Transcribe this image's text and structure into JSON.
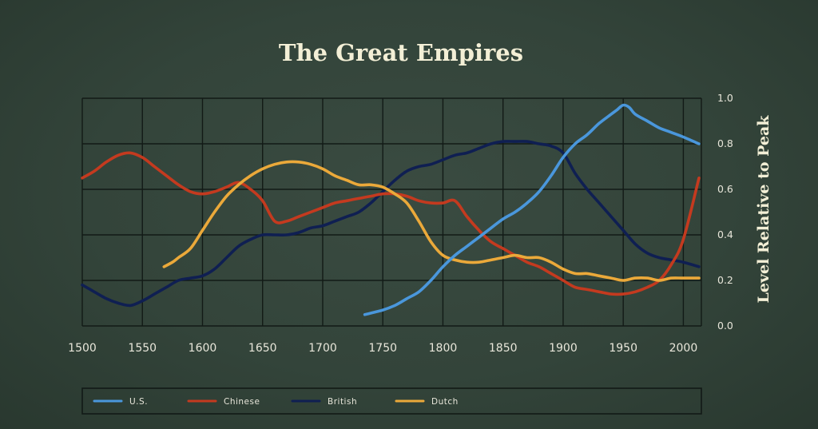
{
  "chart_data": {
    "type": "line",
    "title": "The Great Empires",
    "ylabel": "Level Relative to Peak",
    "xlabel": "",
    "xlim": [
      1500,
      2015
    ],
    "ylim": [
      0.0,
      1.0
    ],
    "xticks": [
      "1500",
      "1550",
      "1600",
      "1650",
      "1700",
      "1750",
      "1800",
      "1850",
      "1900",
      "1950",
      "2000"
    ],
    "yticks": [
      "0.0",
      "0.2",
      "0.4",
      "0.6",
      "0.8",
      "1.0"
    ],
    "grid": true,
    "legend_position": "bottom",
    "series": [
      {
        "name": "U.S.",
        "color": "#4a97dc",
        "x": [
          1735,
          1750,
          1760,
          1770,
          1780,
          1790,
          1800,
          1810,
          1820,
          1830,
          1840,
          1850,
          1860,
          1870,
          1880,
          1890,
          1900,
          1910,
          1920,
          1930,
          1940,
          1945,
          1950,
          1955,
          1960,
          1970,
          1980,
          1990,
          2000,
          2013
        ],
        "y": [
          0.05,
          0.07,
          0.09,
          0.12,
          0.15,
          0.2,
          0.26,
          0.31,
          0.35,
          0.39,
          0.43,
          0.47,
          0.5,
          0.54,
          0.59,
          0.66,
          0.74,
          0.8,
          0.84,
          0.89,
          0.93,
          0.95,
          0.97,
          0.96,
          0.93,
          0.9,
          0.87,
          0.85,
          0.83,
          0.8
        ]
      },
      {
        "name": "Chinese",
        "color": "#c43a1f",
        "x": [
          1500,
          1510,
          1520,
          1530,
          1540,
          1550,
          1560,
          1570,
          1580,
          1590,
          1600,
          1610,
          1620,
          1630,
          1640,
          1650,
          1660,
          1670,
          1680,
          1690,
          1700,
          1710,
          1720,
          1730,
          1740,
          1750,
          1760,
          1770,
          1780,
          1790,
          1800,
          1810,
          1820,
          1830,
          1840,
          1850,
          1860,
          1870,
          1880,
          1890,
          1900,
          1910,
          1920,
          1930,
          1940,
          1950,
          1960,
          1970,
          1980,
          1990,
          2000,
          2013
        ],
        "y": [
          0.65,
          0.68,
          0.72,
          0.75,
          0.76,
          0.74,
          0.7,
          0.66,
          0.62,
          0.59,
          0.58,
          0.59,
          0.61,
          0.63,
          0.6,
          0.55,
          0.46,
          0.46,
          0.48,
          0.5,
          0.52,
          0.54,
          0.55,
          0.56,
          0.57,
          0.58,
          0.58,
          0.57,
          0.55,
          0.54,
          0.54,
          0.55,
          0.48,
          0.42,
          0.37,
          0.34,
          0.31,
          0.28,
          0.26,
          0.23,
          0.2,
          0.17,
          0.16,
          0.15,
          0.14,
          0.14,
          0.15,
          0.17,
          0.2,
          0.27,
          0.38,
          0.65
        ]
      },
      {
        "name": "British",
        "color": "#0f1f52",
        "x": [
          1500,
          1510,
          1520,
          1530,
          1540,
          1550,
          1560,
          1570,
          1580,
          1590,
          1600,
          1610,
          1620,
          1630,
          1640,
          1650,
          1660,
          1670,
          1680,
          1690,
          1700,
          1710,
          1720,
          1730,
          1740,
          1750,
          1760,
          1770,
          1780,
          1790,
          1800,
          1810,
          1820,
          1830,
          1840,
          1850,
          1860,
          1870,
          1880,
          1890,
          1900,
          1910,
          1920,
          1930,
          1940,
          1950,
          1960,
          1970,
          1980,
          1990,
          2000,
          2013
        ],
        "y": [
          0.18,
          0.15,
          0.12,
          0.1,
          0.09,
          0.11,
          0.14,
          0.17,
          0.2,
          0.21,
          0.22,
          0.25,
          0.3,
          0.35,
          0.38,
          0.4,
          0.4,
          0.4,
          0.41,
          0.43,
          0.44,
          0.46,
          0.48,
          0.5,
          0.54,
          0.59,
          0.64,
          0.68,
          0.7,
          0.71,
          0.73,
          0.75,
          0.76,
          0.78,
          0.8,
          0.81,
          0.81,
          0.81,
          0.8,
          0.79,
          0.76,
          0.67,
          0.6,
          0.54,
          0.48,
          0.42,
          0.36,
          0.32,
          0.3,
          0.29,
          0.28,
          0.26
        ]
      },
      {
        "name": "Dutch",
        "color": "#eba93a",
        "x": [
          1568,
          1575,
          1580,
          1590,
          1600,
          1610,
          1620,
          1630,
          1640,
          1650,
          1660,
          1670,
          1680,
          1690,
          1700,
          1710,
          1720,
          1730,
          1740,
          1750,
          1760,
          1770,
          1780,
          1790,
          1800,
          1810,
          1820,
          1830,
          1840,
          1850,
          1860,
          1870,
          1880,
          1890,
          1900,
          1910,
          1920,
          1930,
          1940,
          1950,
          1960,
          1970,
          1980,
          1990,
          2000,
          2013
        ],
        "y": [
          0.26,
          0.28,
          0.3,
          0.34,
          0.42,
          0.5,
          0.57,
          0.62,
          0.66,
          0.69,
          0.71,
          0.72,
          0.72,
          0.71,
          0.69,
          0.66,
          0.64,
          0.62,
          0.62,
          0.61,
          0.58,
          0.54,
          0.46,
          0.37,
          0.31,
          0.29,
          0.28,
          0.28,
          0.29,
          0.3,
          0.31,
          0.3,
          0.3,
          0.28,
          0.25,
          0.23,
          0.23,
          0.22,
          0.21,
          0.2,
          0.21,
          0.21,
          0.2,
          0.21,
          0.21,
          0.21
        ]
      }
    ]
  }
}
